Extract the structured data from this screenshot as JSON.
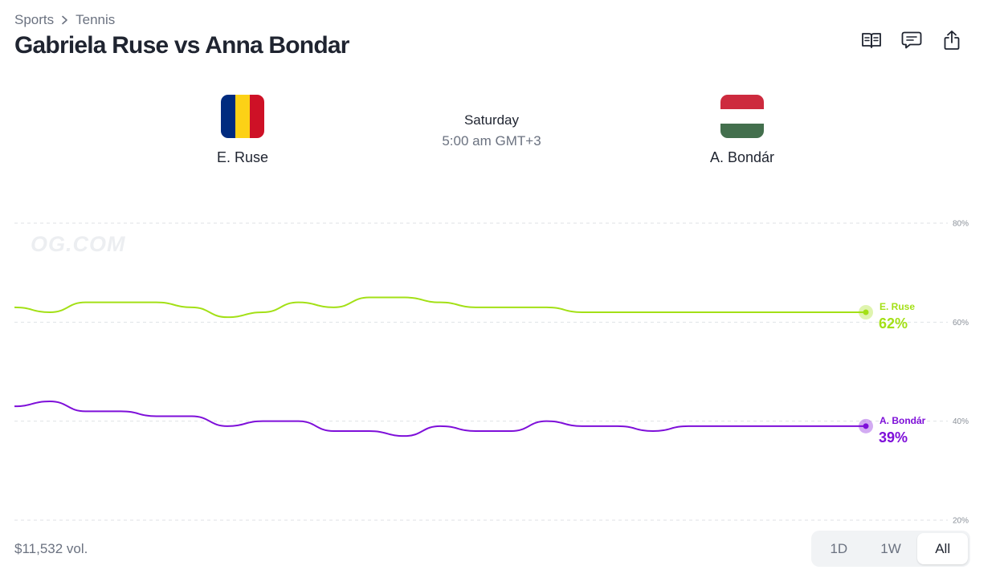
{
  "breadcrumb": {
    "items": [
      "Sports",
      "Tennis"
    ]
  },
  "page": {
    "title": "Gabriela Ruse vs Anna Bondar"
  },
  "actions": [
    "rules-book-icon",
    "comments-icon",
    "share-icon"
  ],
  "match": {
    "home": {
      "name": "E. Ruse",
      "flag": [
        "#002B7F",
        "#FCD116",
        "#CE1126"
      ]
    },
    "away": {
      "name": "A. Bondár",
      "flag": [
        "#CD2A3E",
        "#FFFFFF",
        "#436F4D"
      ]
    },
    "day": "Saturday",
    "time": "5:00 am GMT+3"
  },
  "footer": {
    "volume": "$11,532 vol."
  },
  "range": {
    "options": [
      "1D",
      "1W",
      "All"
    ],
    "selected": "All"
  },
  "chart_data": {
    "type": "line",
    "watermark": "OG.COM",
    "y_ticks": [
      "80%",
      "60%",
      "40%",
      "20%"
    ],
    "y_tick_values": [
      80,
      60,
      40,
      20
    ],
    "ylim": [
      20,
      80
    ],
    "grid": true,
    "series": [
      {
        "name": "E. Ruse",
        "color": "#a3e016",
        "end_label": "62%",
        "values": [
          63,
          62,
          64,
          64,
          64,
          63,
          61,
          62,
          64,
          63,
          65,
          65,
          64,
          63,
          63,
          63,
          62,
          62,
          62,
          62,
          62,
          62,
          62,
          62,
          62
        ]
      },
      {
        "name": "A. Bondár",
        "color": "#7e0fd9",
        "end_label": "39%",
        "values": [
          43,
          44,
          42,
          42,
          41,
          41,
          39,
          40,
          40,
          38,
          38,
          37,
          39,
          38,
          38,
          40,
          39,
          39,
          38,
          39,
          39,
          39,
          39,
          39,
          39
        ]
      }
    ]
  }
}
